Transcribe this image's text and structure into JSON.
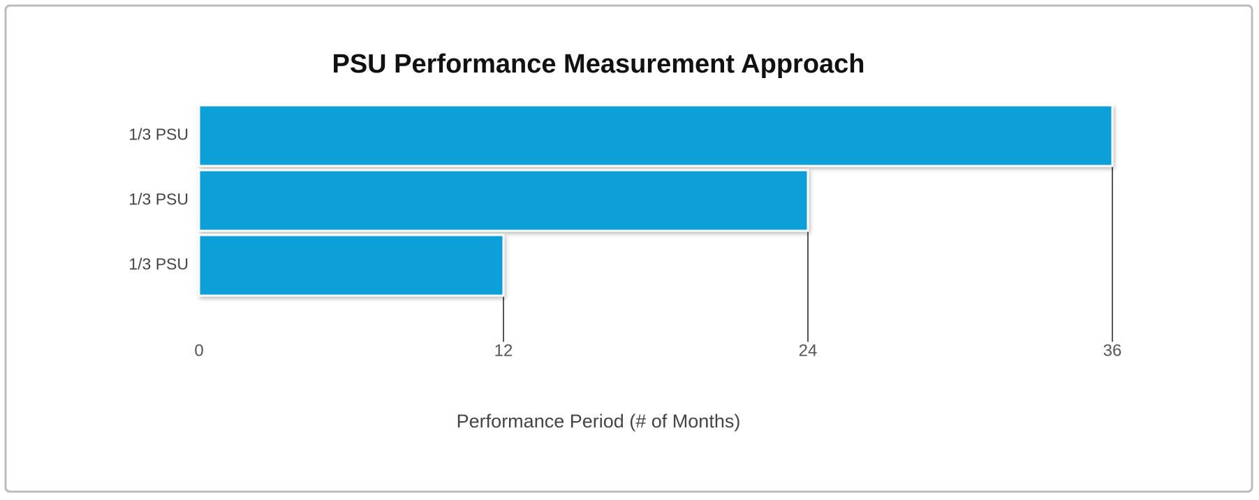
{
  "chart_data": {
    "type": "bar",
    "orientation": "horizontal",
    "title": "PSU Performance Measurement Approach",
    "categories": [
      "1/3 PSU",
      "1/3 PSU",
      "1/3 PSU"
    ],
    "values": [
      36,
      24,
      12
    ],
    "color": "#0a9fd8",
    "xlim": [
      0,
      36
    ],
    "xticks": [
      0,
      12,
      24,
      36
    ],
    "x_label": "Performance Period (# of Months)"
  }
}
